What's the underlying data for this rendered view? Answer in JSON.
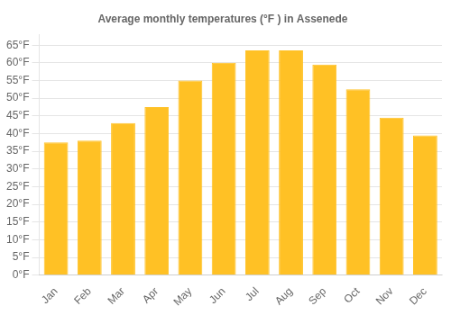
{
  "chart_data": {
    "type": "bar",
    "title": "Average monthly temperatures (°F ) in Assenede",
    "categories": [
      "Jan",
      "Feb",
      "Mar",
      "Apr",
      "May",
      "Jun",
      "Jul",
      "Aug",
      "Sep",
      "Oct",
      "Nov",
      "Dec"
    ],
    "values": [
      37.5,
      38.0,
      43.0,
      47.5,
      55.0,
      60.0,
      63.5,
      63.5,
      59.5,
      52.5,
      44.5,
      39.5
    ],
    "color": "#FFC125",
    "ylim": [
      0,
      68
    ],
    "yticks": [
      {
        "value": 0,
        "label": "0°F"
      },
      {
        "value": 5,
        "label": "5°F"
      },
      {
        "value": 10,
        "label": "10°F"
      },
      {
        "value": 15,
        "label": "15°F"
      },
      {
        "value": 20,
        "label": "20°F"
      },
      {
        "value": 25,
        "label": "25°F"
      },
      {
        "value": 30,
        "label": "30°F"
      },
      {
        "value": 35,
        "label": "35°F"
      },
      {
        "value": 40,
        "label": "40°F"
      },
      {
        "value": 45,
        "label": "45°F"
      },
      {
        "value": 50,
        "label": "50°F"
      },
      {
        "value": 55,
        "label": "55°F"
      },
      {
        "value": 60,
        "label": "60°F"
      },
      {
        "value": 65,
        "label": "65°F"
      }
    ],
    "grid": true
  }
}
